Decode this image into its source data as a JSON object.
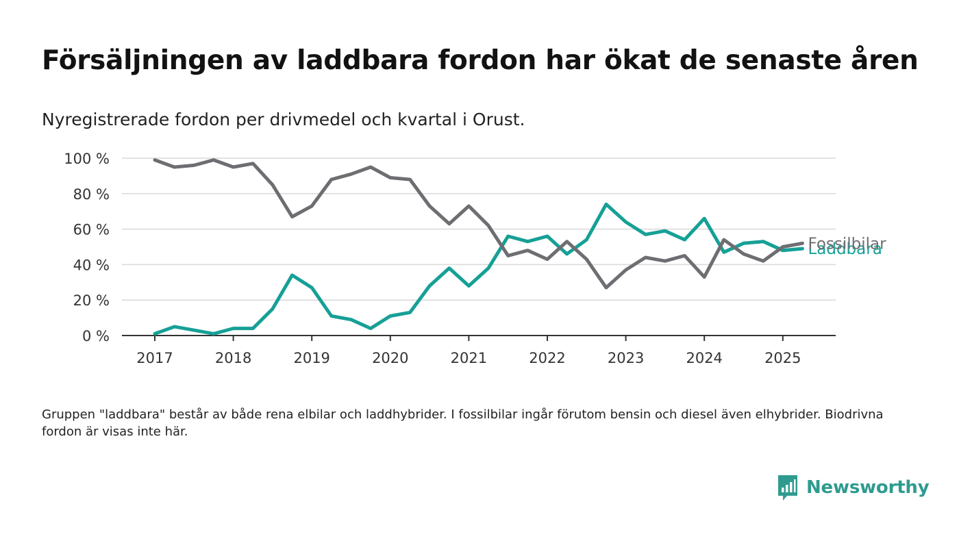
{
  "title": "Försäljningen av laddbara fordon har ökat de senaste åren",
  "subtitle": "Nyregistrerade fordon per drivmedel och kvartal i Orust.",
  "footnote": "Gruppen \"laddbara\" består av både rena elbilar och laddhybrider. I fossilbilar ingår förutom bensin och diesel även elhybrider. Biodrivna fordon är visas inte här.",
  "brand": {
    "name": "Newsworthy",
    "icon": "newsworthy-logo-icon",
    "color": "#2f9b8f"
  },
  "chart_data": {
    "type": "line",
    "x_unit": "quarter",
    "x": [
      "2017Q1",
      "2017Q2",
      "2017Q3",
      "2017Q4",
      "2018Q1",
      "2018Q2",
      "2018Q3",
      "2018Q4",
      "2019Q1",
      "2019Q2",
      "2019Q3",
      "2019Q4",
      "2020Q1",
      "2020Q2",
      "2020Q3",
      "2020Q4",
      "2021Q1",
      "2021Q2",
      "2021Q3",
      "2021Q4",
      "2022Q1",
      "2022Q2",
      "2022Q3",
      "2022Q4",
      "2023Q1",
      "2023Q2",
      "2023Q3",
      "2023Q4",
      "2024Q1",
      "2024Q2",
      "2024Q3",
      "2024Q4",
      "2025Q1",
      "2025Q2"
    ],
    "series": [
      {
        "name": "Fossilbilar",
        "color": "#6e6d72",
        "values": [
          99,
          95,
          96,
          99,
          95,
          97,
          85,
          67,
          73,
          88,
          91,
          95,
          89,
          88,
          73,
          63,
          73,
          62,
          45,
          48,
          43,
          53,
          43,
          27,
          37,
          44,
          42,
          45,
          33,
          54,
          46,
          42,
          50,
          52
        ]
      },
      {
        "name": "Laddbara",
        "color": "#16a096",
        "values": [
          1,
          5,
          3,
          1,
          4,
          4,
          15,
          34,
          27,
          11,
          9,
          4,
          11,
          13,
          28,
          38,
          28,
          38,
          56,
          53,
          56,
          46,
          54,
          74,
          64,
          57,
          59,
          54,
          66,
          47,
          52,
          53,
          48,
          49
        ]
      }
    ],
    "x_ticks": [
      "2017",
      "2018",
      "2019",
      "2020",
      "2021",
      "2022",
      "2023",
      "2024",
      "2025"
    ],
    "y_ticks": [
      "0 %",
      "20 %",
      "40 %",
      "60 %",
      "80 %",
      "100 %"
    ],
    "ylim": [
      0,
      100
    ],
    "grid": true,
    "legend": "line-end labels"
  }
}
